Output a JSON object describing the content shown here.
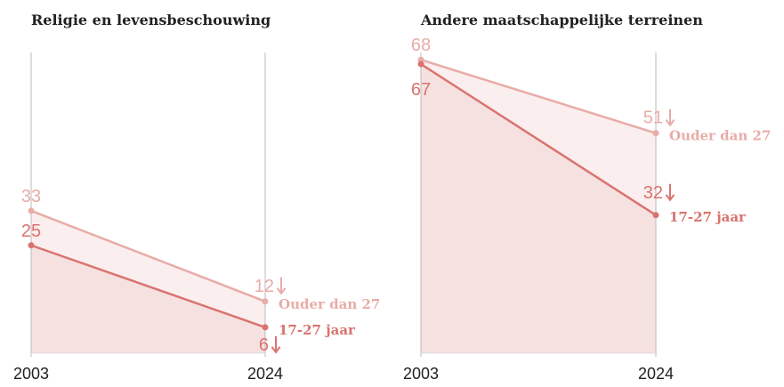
{
  "chart_data": [
    {
      "type": "line",
      "title": "Religie en levensbeschouwing",
      "categories": [
        "2003",
        "2024"
      ],
      "ylim": [
        0,
        80
      ],
      "series": [
        {
          "name": "Ouder dan 27",
          "color": "#e8aca7",
          "values": [
            33,
            12
          ]
        },
        {
          "name": "17-27 jaar",
          "color": "#d9736f",
          "values": [
            25,
            6
          ]
        }
      ]
    },
    {
      "type": "line",
      "title": "Andere maatschappelijke terreinen",
      "categories": [
        "2003",
        "2024"
      ],
      "ylim": [
        0,
        80
      ],
      "series": [
        {
          "name": "Ouder dan 27",
          "color": "#e8aca7",
          "values": [
            68,
            51
          ]
        },
        {
          "name": "17-27 jaar",
          "color": "#d9736f",
          "values": [
            67,
            32
          ]
        }
      ]
    }
  ]
}
